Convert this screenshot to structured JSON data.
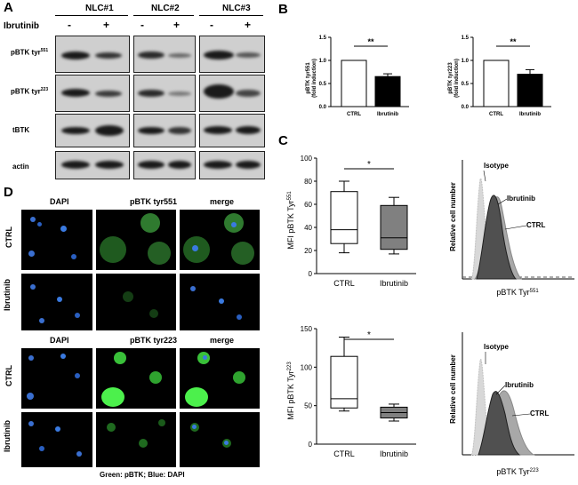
{
  "panelA": {
    "letter": "A",
    "groups": [
      "NLC#1",
      "NLC#2",
      "NLC#3"
    ],
    "treatment_label": "Ibrutinib",
    "treatment_signs": [
      "-",
      "+"
    ],
    "rows": [
      {
        "label": "pBTK tyr",
        "sup": "551"
      },
      {
        "label": "pBTK tyr",
        "sup": "223"
      },
      {
        "label": "tBTK",
        "sup": ""
      },
      {
        "label": "actin",
        "sup": ""
      }
    ]
  },
  "panelB": {
    "letter": "B",
    "charts": [
      {
        "ylabel_line1": "pBTK tyr551",
        "ylabel_line2": "(fold induction)",
        "categories": [
          "CTRL",
          "Ibrutinib"
        ],
        "significance": "**"
      },
      {
        "ylabel_line1": "pBTK tyr223",
        "ylabel_line2": "(fold induction)",
        "categories": [
          "CTRL",
          "Ibrutinib"
        ],
        "significance": "**"
      }
    ]
  },
  "panelC": {
    "letter": "C",
    "boxplots": [
      {
        "ylabel": "MFI pBTK Tyr",
        "sup": "551",
        "categories": [
          "CTRL",
          "Ibrutinib"
        ],
        "significance": "*"
      },
      {
        "ylabel": "MFI pBTK Tyr",
        "sup": "223",
        "categories": [
          "CTRL",
          "Ibrutinib"
        ],
        "significance": "*"
      }
    ],
    "histograms": [
      {
        "ylabel": "Relative cell number",
        "xlabel": "pBTK Tyr",
        "sup": "551",
        "labels": [
          "Isotype",
          "Ibrutinib",
          "CTRL"
        ]
      },
      {
        "ylabel": "Relative cell number",
        "xlabel": "pBTK Tyr",
        "sup": "223",
        "labels": [
          "Isotype",
          "Ibrutinib",
          "CTRL"
        ]
      }
    ]
  },
  "panelD": {
    "letter": "D",
    "sets": [
      {
        "columns": [
          "DAPI",
          "pBTK tyr551",
          "merge"
        ],
        "rows": [
          "CTRL",
          "Ibrutinib"
        ]
      },
      {
        "columns": [
          "DAPI",
          "pBTK tyr223",
          "merge"
        ],
        "rows": [
          "CTRL",
          "Ibrutinib"
        ]
      }
    ],
    "caption": "Green: pBTK; Blue: DAPI"
  },
  "chart_data": [
    {
      "type": "bar",
      "title": "",
      "xlabel": "",
      "ylabel": "pBTK tyr551 (fold induction)",
      "categories": [
        "CTRL",
        "Ibrutinib"
      ],
      "values": [
        1.0,
        0.65
      ],
      "errors": [
        0,
        0.06
      ],
      "ylim": [
        0.0,
        1.5
      ],
      "yticks": [
        0.0,
        0.5,
        1.0,
        1.5
      ],
      "ytick_labels": [
        "0.0",
        "0.5",
        "1.0",
        "1.5"
      ],
      "bar_colors": [
        "#ffffff",
        "#000000"
      ]
    },
    {
      "type": "bar",
      "title": "",
      "xlabel": "",
      "ylabel": "pBTK tyr223 (fold induction)",
      "categories": [
        "CTRL",
        "Ibrutinib"
      ],
      "values": [
        1.0,
        0.7
      ],
      "errors": [
        0,
        0.1
      ],
      "ylim": [
        0.0,
        1.5
      ],
      "yticks": [
        0.0,
        0.5,
        1.0,
        1.5
      ],
      "ytick_labels": [
        "0.0",
        "0.5",
        "1.0",
        "1.5"
      ],
      "bar_colors": [
        "#ffffff",
        "#000000"
      ]
    },
    {
      "type": "box",
      "ylabel": "MFI pBTK Tyr551",
      "categories": [
        "CTRL",
        "Ibrutinib"
      ],
      "boxes": [
        {
          "min": 18,
          "q1": 26,
          "median": 38,
          "q3": 71,
          "max": 80,
          "color": "#ffffff"
        },
        {
          "min": 17,
          "q1": 21,
          "median": 31,
          "q3": 59,
          "max": 66,
          "color": "#808080"
        }
      ],
      "ylim": [
        0,
        100
      ],
      "yticks": [
        0,
        20,
        40,
        60,
        80,
        100
      ],
      "ytick_labels": [
        "0",
        "20",
        "40",
        "60",
        "80",
        "100"
      ]
    },
    {
      "type": "box",
      "ylabel": "MFI pBTK Tyr223",
      "categories": [
        "CTRL",
        "Ibrutinib"
      ],
      "boxes": [
        {
          "min": 43,
          "q1": 47,
          "median": 59,
          "q3": 114,
          "max": 139,
          "color": "#ffffff"
        },
        {
          "min": 30,
          "q1": 34,
          "median": 41,
          "q3": 48,
          "max": 52,
          "color": "#808080"
        }
      ],
      "ylim": [
        0,
        150
      ],
      "yticks": [
        0,
        50,
        100,
        150
      ],
      "ytick_labels": [
        "0",
        "50",
        "100",
        "150"
      ]
    }
  ]
}
